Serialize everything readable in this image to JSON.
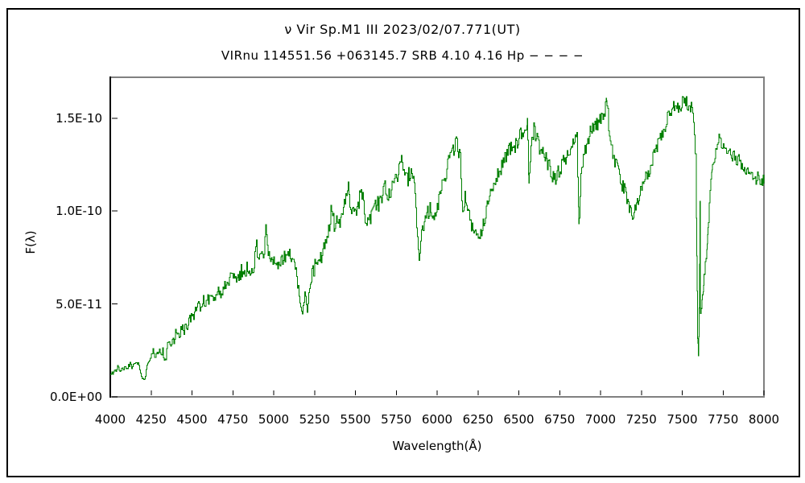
{
  "header": {
    "title_line1": "ν Vir   Sp.M1 III   2023/02/07.771(UT)",
    "title_line2": "VIRnu 114551.56 +063145.7 SRB 4.10 4.16 Hp − − − −"
  },
  "chart_data": {
    "type": "line",
    "title": "ν Vir   Sp.M1 III   2023/02/07.771(UT)",
    "subtitle": "VIRnu 114551.56 +063145.7 SRB 4.10 4.16 Hp − − − −",
    "xlabel": "Wavelength(Å)",
    "ylabel": "F(λ)",
    "xlim": [
      4000,
      8000
    ],
    "ylim": [
      0,
      1.72e-10
    ],
    "grid": false,
    "legend": "none",
    "line_color": "#008000",
    "axis_color": "#808080",
    "left_axis_color": "#000000",
    "x_ticks": [
      4000,
      4250,
      4500,
      4750,
      5000,
      5250,
      5500,
      5750,
      6000,
      6250,
      6500,
      6750,
      7000,
      7250,
      7500,
      7750,
      8000
    ],
    "x_tick_labels": [
      "4000",
      "4250",
      "4500",
      "4750",
      "5000",
      "5250",
      "5500",
      "5750",
      "6000",
      "6250",
      "6500",
      "6750",
      "7000",
      "7250",
      "7500",
      "7750",
      "8000"
    ],
    "y_ticks": [
      {
        "value": 0,
        "label": "0.0E+00"
      },
      {
        "value": 5e-11,
        "label": "5.0E-11"
      },
      {
        "value": 1e-10,
        "label": "1.0E-10"
      },
      {
        "value": 1.5e-10,
        "label": "1.5E-10"
      }
    ],
    "flux_scale": "1e-11",
    "series": [
      {
        "name": "spectrum",
        "points": [
          [
            4000,
            1.2
          ],
          [
            4010,
            1.35
          ],
          [
            4020,
            1.25
          ],
          [
            4030,
            1.4
          ],
          [
            4040,
            1.45
          ],
          [
            4050,
            1.7
          ],
          [
            4060,
            1.4
          ],
          [
            4070,
            1.5
          ],
          [
            4080,
            1.45
          ],
          [
            4090,
            1.6
          ],
          [
            4100,
            1.5
          ],
          [
            4110,
            1.65
          ],
          [
            4120,
            1.75
          ],
          [
            4130,
            1.6
          ],
          [
            4140,
            1.8
          ],
          [
            4150,
            1.7
          ],
          [
            4160,
            1.9
          ],
          [
            4170,
            1.75
          ],
          [
            4180,
            1.55
          ],
          [
            4190,
            1.15
          ],
          [
            4200,
            1.0
          ],
          [
            4210,
            0.9
          ],
          [
            4220,
            1.5
          ],
          [
            4230,
            1.8
          ],
          [
            4240,
            2.0
          ],
          [
            4250,
            2.2
          ],
          [
            4260,
            2.6
          ],
          [
            4270,
            2.1
          ],
          [
            4280,
            2.25
          ],
          [
            4290,
            2.4
          ],
          [
            4300,
            2.6
          ],
          [
            4310,
            2.3
          ],
          [
            4320,
            2.45
          ],
          [
            4330,
            2.2
          ],
          [
            4340,
            2.1
          ],
          [
            4350,
            2.7
          ],
          [
            4360,
            3.0
          ],
          [
            4370,
            2.8
          ],
          [
            4380,
            3.3
          ],
          [
            4390,
            2.9
          ],
          [
            4400,
            3.5
          ],
          [
            4410,
            3.2
          ],
          [
            4420,
            3.3
          ],
          [
            4430,
            3.6
          ],
          [
            4440,
            3.8
          ],
          [
            4450,
            3.5
          ],
          [
            4460,
            4.0
          ],
          [
            4470,
            3.7
          ],
          [
            4480,
            4.3
          ],
          [
            4490,
            4.1
          ],
          [
            4500,
            4.6
          ],
          [
            4510,
            4.4
          ],
          [
            4520,
            4.9
          ],
          [
            4530,
            4.7
          ],
          [
            4540,
            5.2
          ],
          [
            4550,
            4.8
          ],
          [
            4560,
            5.0
          ],
          [
            4570,
            5.3
          ],
          [
            4580,
            4.9
          ],
          [
            4590,
            5.4
          ],
          [
            4600,
            5.2
          ],
          [
            4620,
            5.5
          ],
          [
            4640,
            5.3
          ],
          [
            4660,
            5.7
          ],
          [
            4680,
            5.5
          ],
          [
            4700,
            6.0
          ],
          [
            4720,
            6.1
          ],
          [
            4740,
            6.4
          ],
          [
            4760,
            6.6
          ],
          [
            4780,
            6.2
          ],
          [
            4800,
            6.8
          ],
          [
            4820,
            6.6
          ],
          [
            4840,
            7.0
          ],
          [
            4855,
            6.3
          ],
          [
            4870,
            6.9
          ],
          [
            4880,
            7.2
          ],
          [
            4895,
            8.1
          ],
          [
            4910,
            7.2
          ],
          [
            4925,
            7.5
          ],
          [
            4940,
            7.7
          ],
          [
            4950,
            9.1
          ],
          [
            4960,
            7.8
          ],
          [
            4975,
            7.3
          ],
          [
            4990,
            7.6
          ],
          [
            5010,
            7.3
          ],
          [
            5030,
            7.0
          ],
          [
            5050,
            7.4
          ],
          [
            5070,
            7.6
          ],
          [
            5090,
            7.7
          ],
          [
            5110,
            7.3
          ],
          [
            5130,
            6.9
          ],
          [
            5150,
            5.8
          ],
          [
            5165,
            4.9
          ],
          [
            5175,
            4.4
          ],
          [
            5190,
            5.6
          ],
          [
            5205,
            4.6
          ],
          [
            5220,
            5.9
          ],
          [
            5235,
            6.6
          ],
          [
            5250,
            7.0
          ],
          [
            5265,
            7.4
          ],
          [
            5280,
            7.2
          ],
          [
            5300,
            7.8
          ],
          [
            5320,
            8.4
          ],
          [
            5340,
            9.0
          ],
          [
            5355,
            10.4
          ],
          [
            5370,
            9.2
          ],
          [
            5385,
            9.8
          ],
          [
            5400,
            9.4
          ],
          [
            5420,
            10.0
          ],
          [
            5440,
            10.7
          ],
          [
            5455,
            11.2
          ],
          [
            5470,
            10.1
          ],
          [
            5490,
            9.7
          ],
          [
            5505,
            9.9
          ],
          [
            5520,
            10.4
          ],
          [
            5535,
            11.3
          ],
          [
            5550,
            10.2
          ],
          [
            5565,
            9.6
          ],
          [
            5580,
            9.3
          ],
          [
            5600,
            10.1
          ],
          [
            5620,
            10.6
          ],
          [
            5640,
            10.2
          ],
          [
            5660,
            10.8
          ],
          [
            5680,
            11.2
          ],
          [
            5700,
            10.6
          ],
          [
            5720,
            11.0
          ],
          [
            5740,
            11.5
          ],
          [
            5760,
            11.9
          ],
          [
            5780,
            12.7
          ],
          [
            5800,
            12.0
          ],
          [
            5820,
            11.8
          ],
          [
            5840,
            12.3
          ],
          [
            5860,
            11.6
          ],
          [
            5875,
            9.0
          ],
          [
            5890,
            7.4
          ],
          [
            5905,
            9.0
          ],
          [
            5920,
            9.6
          ],
          [
            5940,
            9.9
          ],
          [
            5960,
            10.1
          ],
          [
            5980,
            10.0
          ],
          [
            6000,
            10.4
          ],
          [
            6020,
            10.9
          ],
          [
            6040,
            11.5
          ],
          [
            6060,
            12.3
          ],
          [
            6080,
            12.9
          ],
          [
            6100,
            13.3
          ],
          [
            6120,
            13.7
          ],
          [
            6140,
            12.9
          ],
          [
            6155,
            9.8
          ],
          [
            6170,
            10.9
          ],
          [
            6185,
            10.2
          ],
          [
            6200,
            9.5
          ],
          [
            6220,
            9.0
          ],
          [
            6240,
            8.8
          ],
          [
            6260,
            8.6
          ],
          [
            6280,
            9.3
          ],
          [
            6300,
            10.0
          ],
          [
            6320,
            10.7
          ],
          [
            6340,
            11.2
          ],
          [
            6360,
            11.7
          ],
          [
            6380,
            12.1
          ],
          [
            6400,
            12.5
          ],
          [
            6420,
            13.0
          ],
          [
            6440,
            13.4
          ],
          [
            6460,
            13.6
          ],
          [
            6480,
            13.5
          ],
          [
            6500,
            13.9
          ],
          [
            6520,
            14.2
          ],
          [
            6540,
            14.7
          ],
          [
            6552,
            14.9
          ],
          [
            6562,
            11.4
          ],
          [
            6575,
            13.6
          ],
          [
            6590,
            14.4
          ],
          [
            6605,
            13.9
          ],
          [
            6620,
            13.5
          ],
          [
            6640,
            13.3
          ],
          [
            6660,
            12.9
          ],
          [
            6680,
            12.5
          ],
          [
            6700,
            12.1
          ],
          [
            6720,
            11.6
          ],
          [
            6740,
            12.0
          ],
          [
            6760,
            12.5
          ],
          [
            6780,
            12.9
          ],
          [
            6800,
            13.1
          ],
          [
            6820,
            13.4
          ],
          [
            6840,
            13.7
          ],
          [
            6855,
            13.9
          ],
          [
            6868,
            9.3
          ],
          [
            6880,
            12.0
          ],
          [
            6900,
            13.1
          ],
          [
            6920,
            13.9
          ],
          [
            6940,
            14.3
          ],
          [
            6960,
            14.6
          ],
          [
            6980,
            14.7
          ],
          [
            7000,
            14.9
          ],
          [
            7020,
            15.1
          ],
          [
            7038,
            16.1
          ],
          [
            7055,
            14.0
          ],
          [
            7075,
            12.9
          ],
          [
            7095,
            12.4
          ],
          [
            7115,
            11.9
          ],
          [
            7135,
            11.3
          ],
          [
            7155,
            10.9
          ],
          [
            7175,
            10.3
          ],
          [
            7195,
            9.7
          ],
          [
            7215,
            10.3
          ],
          [
            7235,
            10.8
          ],
          [
            7255,
            11.3
          ],
          [
            7275,
            11.8
          ],
          [
            7295,
            12.2
          ],
          [
            7315,
            12.7
          ],
          [
            7335,
            13.2
          ],
          [
            7355,
            13.7
          ],
          [
            7375,
            14.1
          ],
          [
            7395,
            14.6
          ],
          [
            7415,
            15.2
          ],
          [
            7435,
            15.4
          ],
          [
            7455,
            15.7
          ],
          [
            7475,
            15.5
          ],
          [
            7495,
            15.8
          ],
          [
            7515,
            16.0
          ],
          [
            7535,
            15.7
          ],
          [
            7555,
            15.6
          ],
          [
            7570,
            15.0
          ],
          [
            7580,
            13.0
          ],
          [
            7588,
            7.5
          ],
          [
            7593,
            3.2
          ],
          [
            7598,
            2.3
          ],
          [
            7603,
            4.8
          ],
          [
            7608,
            10.6
          ],
          [
            7612,
            4.6
          ],
          [
            7617,
            4.8
          ],
          [
            7622,
            5.4
          ],
          [
            7628,
            5.6
          ],
          [
            7634,
            6.5
          ],
          [
            7640,
            7.3
          ],
          [
            7646,
            7.5
          ],
          [
            7652,
            8.2
          ],
          [
            7658,
            9.1
          ],
          [
            7664,
            10.2
          ],
          [
            7670,
            11.2
          ],
          [
            7676,
            11.6
          ],
          [
            7682,
            12.3
          ],
          [
            7695,
            12.7
          ],
          [
            7710,
            13.3
          ],
          [
            7725,
            14.0
          ],
          [
            7740,
            13.6
          ],
          [
            7755,
            13.4
          ],
          [
            7770,
            13.1
          ],
          [
            7785,
            13.2
          ],
          [
            7800,
            12.9
          ],
          [
            7815,
            13.1
          ],
          [
            7830,
            12.6
          ],
          [
            7845,
            12.8
          ],
          [
            7860,
            12.4
          ],
          [
            7875,
            12.3
          ],
          [
            7890,
            12.1
          ],
          [
            7905,
            12.2
          ],
          [
            7920,
            11.9
          ],
          [
            7935,
            11.8
          ],
          [
            7950,
            11.7
          ],
          [
            7965,
            11.9
          ],
          [
            7980,
            11.6
          ],
          [
            8000,
            11.7
          ]
        ]
      }
    ],
    "noise": {
      "seed": 987654321,
      "amplitude_ranges": [
        [
          4000,
          4300,
          0.12
        ],
        [
          4300,
          4700,
          0.25
        ],
        [
          4700,
          5150,
          0.4
        ],
        [
          5150,
          5230,
          0.2
        ],
        [
          5230,
          5600,
          0.45
        ],
        [
          5600,
          5870,
          0.5
        ],
        [
          5870,
          5910,
          0.2
        ],
        [
          5910,
          6140,
          0.5
        ],
        [
          6140,
          6300,
          0.35
        ],
        [
          6300,
          6550,
          0.45
        ],
        [
          6550,
          6580,
          0.15
        ],
        [
          6580,
          6860,
          0.45
        ],
        [
          6860,
          6890,
          0.2
        ],
        [
          6890,
          7190,
          0.4
        ],
        [
          7190,
          7570,
          0.35
        ],
        [
          7570,
          7690,
          0.12
        ],
        [
          7690,
          8000,
          0.28
        ]
      ]
    }
  }
}
